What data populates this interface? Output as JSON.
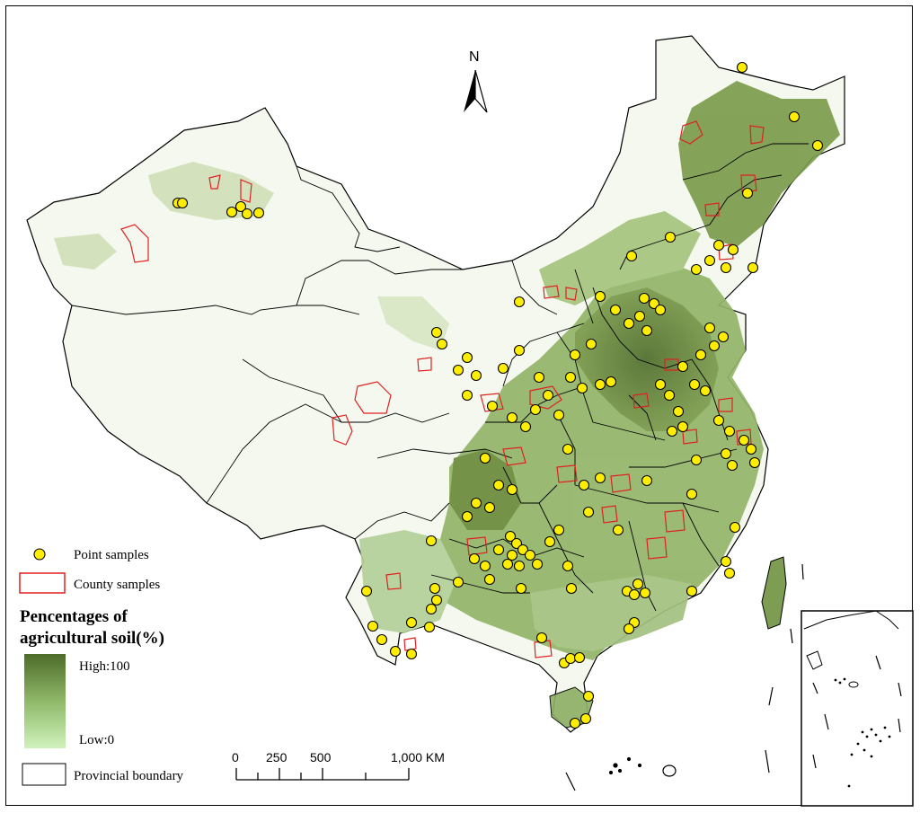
{
  "north_label": "N",
  "legend": {
    "point_samples": "Point samples",
    "county_samples": "County samples",
    "gradient_title_line1": "Pencentages of",
    "gradient_title_line2": "agricultural soil(%)",
    "gradient_high": "High:100",
    "gradient_low": "Low:0",
    "provincial_boundary": "Provincial boundary"
  },
  "scale_bar": {
    "ticks": [
      "0",
      "250",
      "500",
      "1,000 KM"
    ]
  },
  "colors": {
    "point_fill": "#ffee00",
    "county_outline": "#e02020",
    "agri_high": "#4a6a28",
    "agri_low": "#c8f0b0",
    "boundary": "#000000"
  }
}
